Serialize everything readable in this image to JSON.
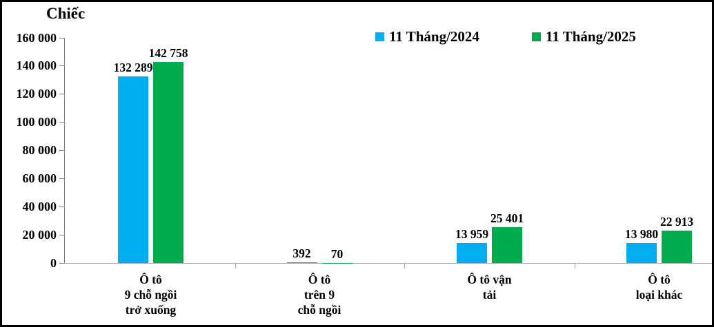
{
  "chart_data": {
    "type": "bar",
    "title": "Chiếc",
    "ylabel": "Chiếc",
    "xlabel": "",
    "categories": [
      {
        "lines": [
          "Ô tô",
          "9 chỗ ngồi",
          "trở xuống"
        ]
      },
      {
        "lines": [
          "Ô tô",
          "trên 9",
          "chỗ ngồi"
        ]
      },
      {
        "lines": [
          "Ô tô vận",
          "tải"
        ]
      },
      {
        "lines": [
          "Ô tô",
          "loại khác"
        ]
      }
    ],
    "series": [
      {
        "name": "11 Tháng/2024",
        "color": "#00AEEF",
        "values": [
          132289,
          392,
          13959,
          13980
        ],
        "value_labels": [
          "132 289",
          "392",
          "13 959",
          "13 980"
        ]
      },
      {
        "name": "11 Tháng/2025",
        "color": "#00AC4E",
        "values": [
          142758,
          70,
          25401,
          22913
        ],
        "value_labels": [
          "142 758",
          "70",
          "25 401",
          "22 913"
        ]
      }
    ],
    "ylim": [
      0,
      160000
    ],
    "ytick_step": 20000,
    "ytick_labels": [
      "0",
      "20 000",
      "40 000",
      "60 000",
      "80 000",
      "100 000",
      "120 000",
      "140 000",
      "160 000"
    ],
    "grid": false,
    "legend_position": "top-center"
  },
  "style": {
    "axis_color": "#808080",
    "baseline_color": "#a6a6a6",
    "text_color": "#000000",
    "background": "#ffffff"
  }
}
